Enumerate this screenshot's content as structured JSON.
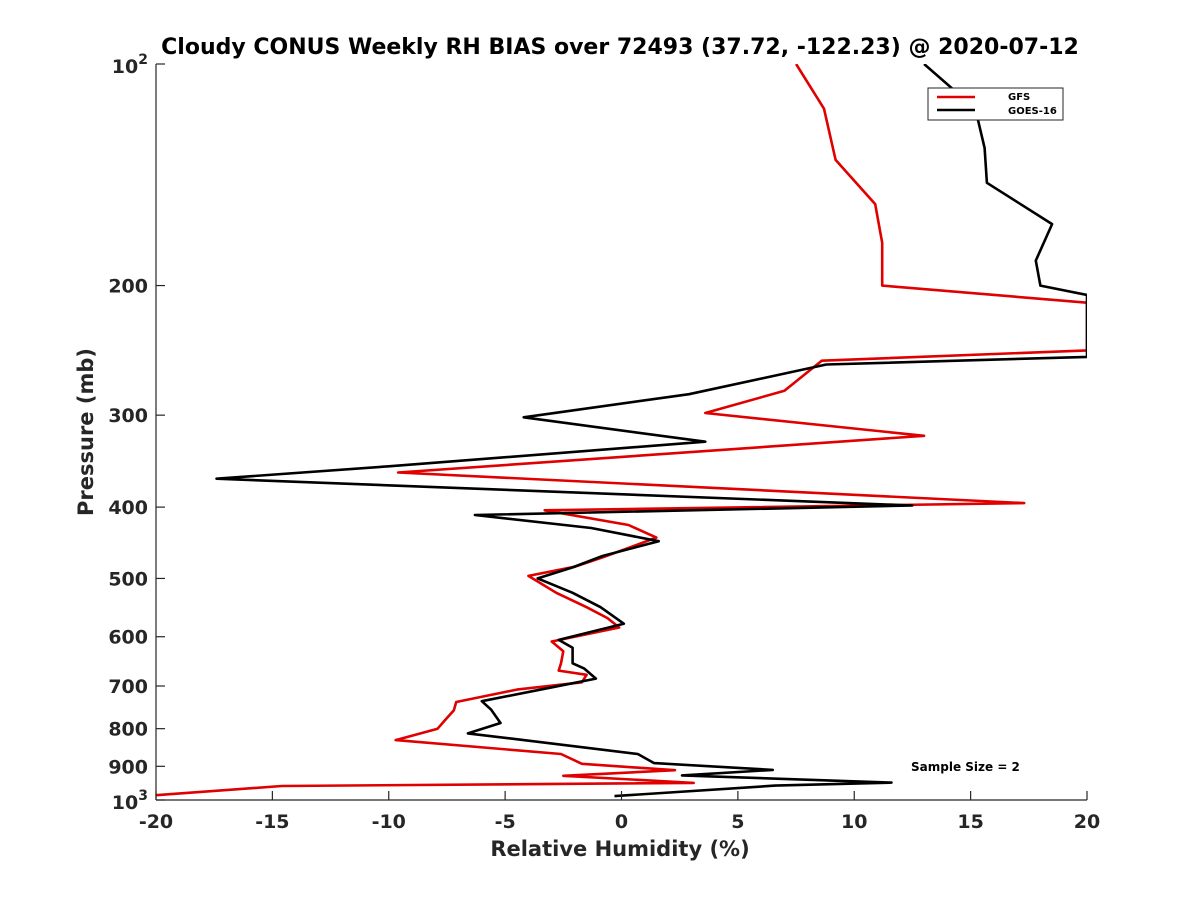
{
  "chart_data": {
    "type": "line",
    "title": "Cloudy CONUS Weekly RH BIAS over 72493 (37.72, -122.23) @ 2020-07-12",
    "xlabel": "Relative Humidity (%)",
    "ylabel": "Pressure (mb)",
    "xlim": [
      -20,
      20
    ],
    "ylim": [
      100,
      1000
    ],
    "y_scale": "log",
    "y_reversed": true,
    "x_ticks": [
      "-20",
      "-15",
      "-10",
      "-5",
      "0",
      "5",
      "10",
      "15",
      "20"
    ],
    "y_ticks": [
      {
        "value": 100,
        "base": "10",
        "exp": "2"
      },
      {
        "value": 200,
        "label": "200"
      },
      {
        "value": 300,
        "label": "300"
      },
      {
        "value": 400,
        "label": "400"
      },
      {
        "value": 500,
        "label": "500"
      },
      {
        "value": 600,
        "label": "600"
      },
      {
        "value": 700,
        "label": "700"
      },
      {
        "value": 800,
        "label": "800"
      },
      {
        "value": 900,
        "label": "900"
      },
      {
        "value": 1000,
        "base": "10",
        "exp": "3"
      }
    ],
    "legend_position": "top-right",
    "annotation": "Sample Size = 2",
    "series": [
      {
        "name": "GFS",
        "color": "#e00000",
        "points": [
          [
            7.5,
            100
          ],
          [
            8.7,
            115
          ],
          [
            9.2,
            135
          ],
          [
            10.9,
            155
          ],
          [
            11.2,
            175
          ],
          [
            11.2,
            200
          ],
          [
            20.0,
            211
          ],
          [
            20.0,
            245
          ],
          [
            8.6,
            253
          ],
          [
            7.0,
            278
          ],
          [
            3.6,
            298
          ],
          [
            13.0,
            320
          ],
          [
            -9.6,
            359
          ],
          [
            17.3,
            395
          ],
          [
            -3.3,
            404
          ],
          [
            0.3,
            423
          ],
          [
            1.5,
            440
          ],
          [
            -0.8,
            468
          ],
          [
            -2.0,
            482
          ],
          [
            -4.0,
            496
          ],
          [
            -2.8,
            523
          ],
          [
            -1.5,
            547
          ],
          [
            -0.6,
            566
          ],
          [
            -0.1,
            583
          ],
          [
            -3.0,
            609
          ],
          [
            -2.5,
            628
          ],
          [
            -2.6,
            652
          ],
          [
            -2.7,
            667
          ],
          [
            -1.5,
            676
          ],
          [
            -1.7,
            692
          ],
          [
            -4.5,
            708
          ],
          [
            -7.1,
            736
          ],
          [
            -7.2,
            755
          ],
          [
            -7.6,
            780
          ],
          [
            -7.9,
            800
          ],
          [
            -9.7,
            829
          ],
          [
            -2.6,
            866
          ],
          [
            -1.7,
            893
          ],
          [
            2.3,
            911
          ],
          [
            -2.5,
            927
          ],
          [
            3.1,
            948
          ],
          [
            -14.6,
            957
          ],
          [
            -20.0,
            985
          ]
        ]
      },
      {
        "name": "GOES-16",
        "color": "#000000",
        "points": [
          [
            13.0,
            100
          ],
          [
            15.2,
            115
          ],
          [
            15.6,
            130
          ],
          [
            15.7,
            145
          ],
          [
            18.5,
            165
          ],
          [
            17.8,
            185
          ],
          [
            18.0,
            200
          ],
          [
            20.0,
            206
          ],
          [
            20.0,
            250
          ],
          [
            8.8,
            256
          ],
          [
            2.9,
            281
          ],
          [
            -4.2,
            302
          ],
          [
            3.6,
            326
          ],
          [
            -10.0,
            352
          ],
          [
            -17.4,
            366
          ],
          [
            12.5,
            398
          ],
          [
            -6.3,
            410
          ],
          [
            -1.3,
            427
          ],
          [
            1.6,
            445
          ],
          [
            -0.8,
            466
          ],
          [
            -2.1,
            483
          ],
          [
            -3.6,
            500
          ],
          [
            -2.1,
            523
          ],
          [
            -0.9,
            547
          ],
          [
            0.1,
            576
          ],
          [
            -2.7,
            606
          ],
          [
            -2.1,
            621
          ],
          [
            -2.1,
            652
          ],
          [
            -1.6,
            663
          ],
          [
            -1.1,
            684
          ],
          [
            -3.2,
            705
          ],
          [
            -6.0,
            734
          ],
          [
            -5.6,
            754
          ],
          [
            -5.2,
            786
          ],
          [
            -6.6,
            812
          ],
          [
            -4.6,
            826
          ],
          [
            0.7,
            866
          ],
          [
            1.4,
            891
          ],
          [
            6.5,
            910
          ],
          [
            2.6,
            926
          ],
          [
            11.6,
            947
          ],
          [
            6.6,
            956
          ],
          [
            -0.3,
            988
          ]
        ]
      }
    ]
  }
}
